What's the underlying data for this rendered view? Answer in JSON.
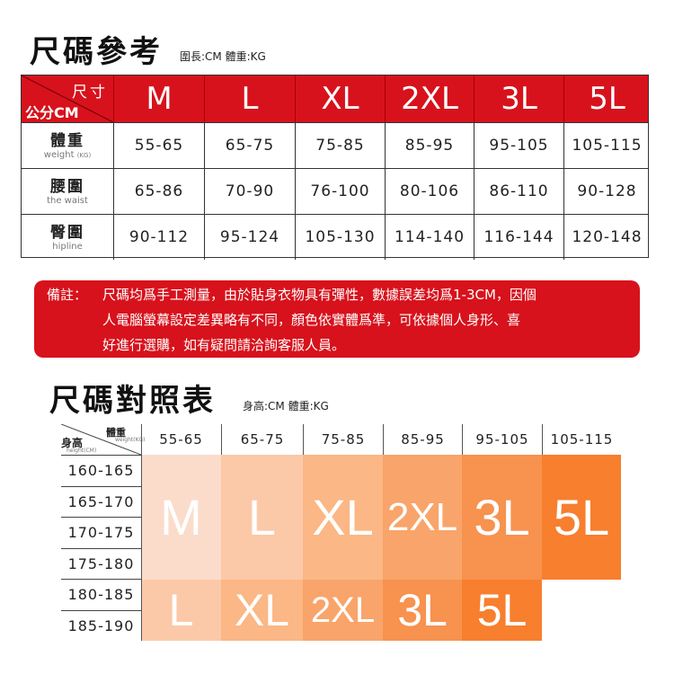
{
  "chart1": {
    "title": "尺碼參考",
    "units": "圍長:CM   體重:KG",
    "corner_top": "尺寸",
    "corner_bottom": "公分CM",
    "sizes": [
      "M",
      "L",
      "XL",
      "2XL",
      "3L",
      "5L"
    ],
    "rows": [
      {
        "zh": "體重",
        "en": "weight",
        "en_unit": "(KG)",
        "values": [
          "55-65",
          "65-75",
          "75-85",
          "85-95",
          "95-105",
          "105-115"
        ]
      },
      {
        "zh": "腰圍",
        "en": "the waist",
        "en_unit": "",
        "values": [
          "65-86",
          "70-90",
          "76-100",
          "80-106",
          "86-110",
          "90-128"
        ]
      },
      {
        "zh": "臀圍",
        "en": "hipline",
        "en_unit": "",
        "values": [
          "90-112",
          "95-124",
          "105-130",
          "114-140",
          "116-144",
          "120-148"
        ]
      }
    ]
  },
  "note": {
    "lead": "備註：",
    "line1": "尺碼均爲手工測量，由於貼身衣物具有彈性，數據誤差均爲1-3CM，因個",
    "line2": "人電腦螢幕設定差異略有不同，顏色依實體爲準，可依據個人身形、喜",
    "line3": "好進行選購，如有疑問請洽詢客服人員。"
  },
  "chart2": {
    "title": "尺碼對照表",
    "units": "身高:CM  體重:KG",
    "corner_weight": "體重",
    "corner_weight_en": "weight(KG)",
    "corner_height": "身高",
    "corner_height_en": "height(CM)",
    "weights": [
      "55-65",
      "65-75",
      "75-85",
      "85-95",
      "95-105",
      "105-115"
    ],
    "heights": [
      "160-165",
      "165-170",
      "170-175",
      "175-180",
      "180-185",
      "185-190"
    ],
    "upper_sizes": [
      "M",
      "L",
      "XL",
      "2XL",
      "3L",
      "5L"
    ],
    "lower_sizes": [
      "L",
      "XL",
      "2XL",
      "3L",
      "5L"
    ],
    "colors": [
      "#fbdccb",
      "#fbc9a8",
      "#fbb785",
      "#f9a46a",
      "#f7924f",
      "#f77f2e"
    ]
  },
  "colors": {
    "accent": "#d7121c"
  }
}
